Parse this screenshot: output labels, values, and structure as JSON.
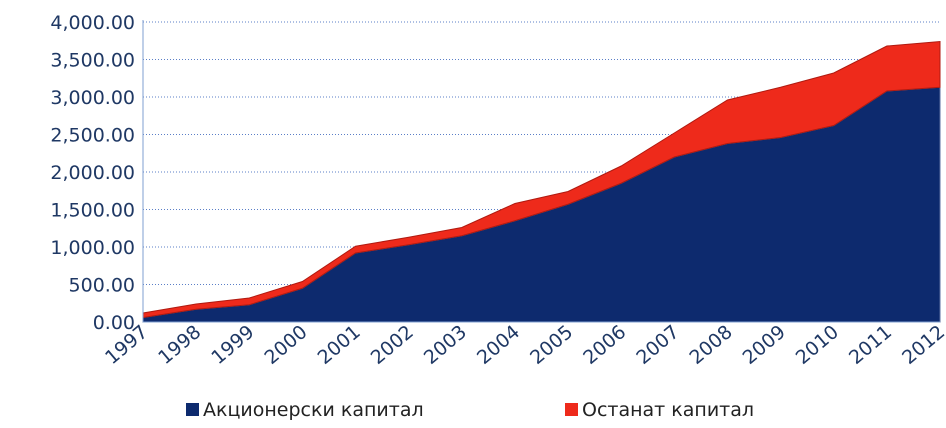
{
  "chart_data": {
    "type": "stacked-area",
    "categories": [
      "1997",
      "1998",
      "1999",
      "2000",
      "2001",
      "2002",
      "2003",
      "2004",
      "2005",
      "2006",
      "2007",
      "2008",
      "2009",
      "2010",
      "2011",
      "2012"
    ],
    "series": [
      {
        "name": "Акционерски капитал",
        "color": "#0d2a6e",
        "values": [
          60,
          170,
          230,
          450,
          920,
          1030,
          1150,
          1350,
          1570,
          1850,
          2200,
          2380,
          2460,
          2620,
          3080,
          3130
        ]
      },
      {
        "name": "Останат капитал",
        "color": "#ee2a1b",
        "values": [
          60,
          70,
          90,
          90,
          90,
          100,
          110,
          230,
          170,
          230,
          320,
          580,
          670,
          700,
          600,
          610
        ]
      }
    ],
    "ylim": [
      0,
      4000
    ],
    "yticks": [
      {
        "value": 0,
        "label": "0.00"
      },
      {
        "value": 500,
        "label": "500.00"
      },
      {
        "value": 1000,
        "label": "1,000.00"
      },
      {
        "value": 1500,
        "label": "1,500.00"
      },
      {
        "value": 2000,
        "label": "2,000.00"
      },
      {
        "value": 2500,
        "label": "2,500.00"
      },
      {
        "value": 3000,
        "label": "3,000.00"
      },
      {
        "value": 3500,
        "label": "3,500.00"
      },
      {
        "value": 4000,
        "label": "4,000.00"
      }
    ],
    "grid": true,
    "legend": "bottom"
  }
}
